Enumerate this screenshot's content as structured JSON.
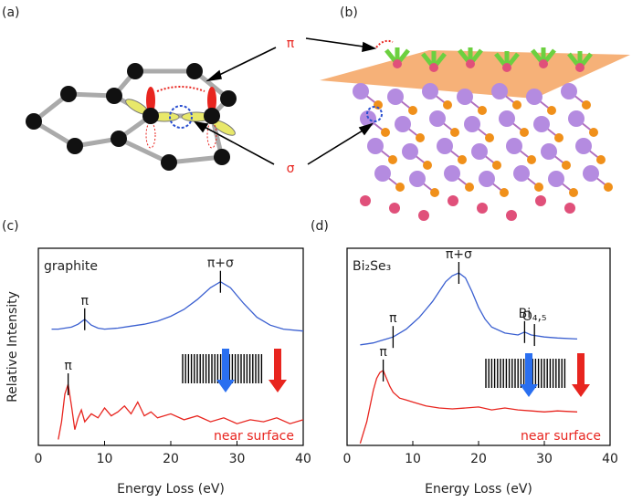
{
  "panel_a": {
    "label": "(a)"
  },
  "panel_b": {
    "label": "(b)"
  },
  "orbital_labels": {
    "pi": "π",
    "sigma": "σ"
  },
  "chart_data": [
    {
      "type": "line",
      "label": "(c)",
      "sample": "graphite",
      "ylabel": "Relative Intensity",
      "xlabel": "Energy Loss (eV)",
      "xlim": [
        0,
        40
      ],
      "xticks": [
        0,
        10,
        20,
        30,
        40
      ],
      "ylim": [
        0,
        100
      ],
      "series": [
        {
          "color": "#3a5fd0",
          "x": [
            2,
            3,
            4,
            5,
            6,
            7,
            8,
            9,
            10,
            12,
            14,
            16,
            18,
            20,
            22,
            24,
            26,
            27.5,
            29,
            31,
            33,
            35,
            37,
            40
          ],
          "values": [
            59,
            59,
            59.5,
            60,
            61.5,
            64,
            61,
            59.5,
            59,
            59.5,
            60.5,
            61.5,
            63,
            65.5,
            69,
            74,
            80,
            83,
            80,
            72,
            65,
            61,
            59,
            58
          ]
        },
        {
          "name": "near surface",
          "color": "#e8251f",
          "x": [
            3,
            3.5,
            4,
            4.5,
            5,
            5.5,
            6,
            6.5,
            7,
            8,
            9,
            10,
            11,
            12,
            13,
            14,
            15,
            16,
            17,
            18,
            20,
            22,
            24,
            26,
            28,
            30,
            32,
            34,
            36,
            38,
            40
          ],
          "values": [
            3,
            12,
            26,
            31,
            20,
            8,
            14,
            18,
            12,
            16,
            14,
            19,
            15,
            17,
            20,
            16,
            22,
            15,
            17,
            14,
            16,
            13,
            15,
            12,
            14,
            11,
            13,
            12,
            14,
            11,
            13
          ]
        }
      ],
      "annotations": [
        {
          "text": "π",
          "x": 7,
          "y": 64
        },
        {
          "text": "π+σ",
          "x": 27.5,
          "y": 83
        },
        {
          "text": "π",
          "x": 4.5,
          "y": 31
        }
      ]
    },
    {
      "type": "line",
      "label": "(d)",
      "sample": "Bi₂Se₃",
      "xlabel": "Energy Loss (eV)",
      "xlim": [
        0,
        40
      ],
      "xticks": [
        0,
        10,
        20,
        30,
        40
      ],
      "ylim": [
        0,
        100
      ],
      "series": [
        {
          "color": "#3a5fd0",
          "x": [
            2,
            3,
            4,
            5,
            6,
            7,
            8,
            9,
            10,
            11,
            12,
            13,
            14,
            15,
            16,
            17,
            18,
            19,
            20,
            21,
            22,
            24,
            26,
            27,
            28,
            30,
            32,
            35
          ],
          "values": [
            51,
            51.5,
            52,
            53,
            54,
            55,
            57,
            59,
            62,
            65,
            69,
            73,
            78,
            83,
            86,
            87.5,
            85,
            78,
            70,
            64,
            60,
            57,
            56,
            57.5,
            56,
            55,
            54.5,
            54
          ]
        },
        {
          "name": "near surface",
          "color": "#e8251f",
          "x": [
            2,
            3,
            4,
            4.5,
            5,
            5.5,
            6,
            6.5,
            7,
            8,
            9,
            10,
            12,
            14,
            16,
            18,
            20,
            22,
            24,
            26,
            28,
            30,
            32,
            35
          ],
          "values": [
            1,
            12,
            28,
            34,
            37,
            38,
            34,
            30,
            27,
            24,
            23,
            22,
            20,
            19,
            18.5,
            19,
            19.5,
            18,
            19,
            18,
            17.5,
            17,
            17.5,
            17
          ]
        }
      ],
      "annotations": [
        {
          "text": "π",
          "x": 7,
          "y": 55
        },
        {
          "text": "π+σ",
          "x": 17,
          "y": 87.5
        },
        {
          "text": "Bi",
          "x": 27,
          "y": 57.5
        },
        {
          "text": "O₄,₅",
          "x": 28.5,
          "y": 56
        },
        {
          "text": "π",
          "x": 5.5,
          "y": 38
        }
      ]
    }
  ]
}
